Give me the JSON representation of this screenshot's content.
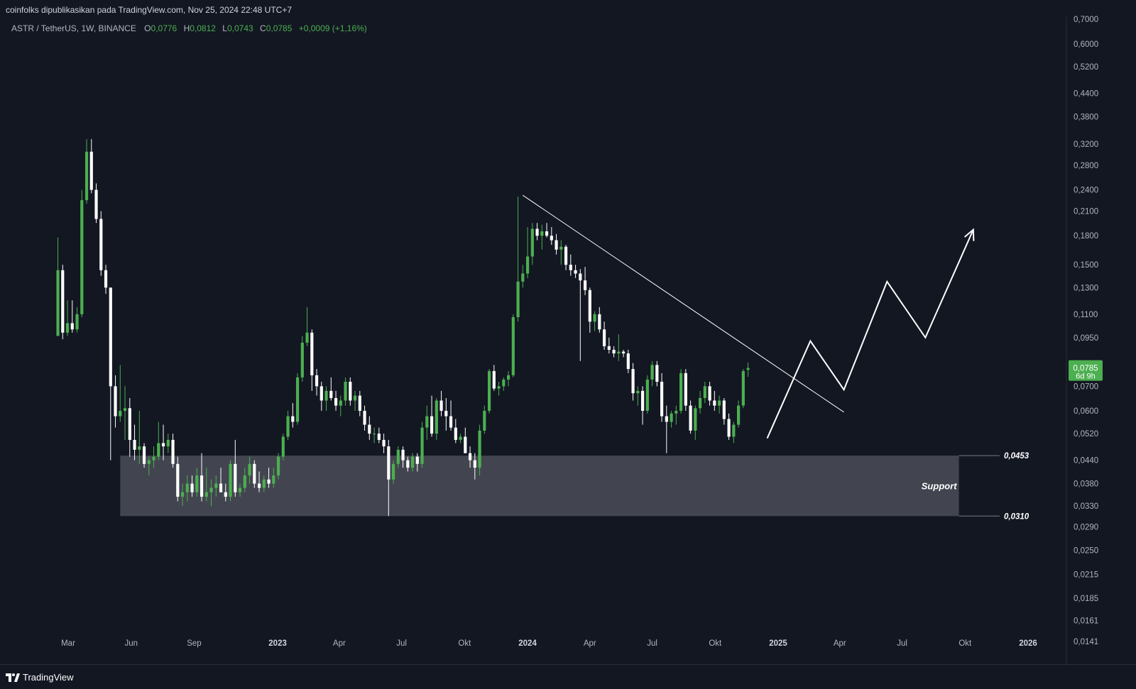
{
  "header": {
    "publisher_line": "coinfolks dipublikasikan pada TradingView.com, Nov 25, 2024 22:48 UTC+7"
  },
  "legend": {
    "symbol": "ASTR / TetherUS, 1W, BINANCE",
    "o_label": "O",
    "o_value": "0,0776",
    "h_label": "H",
    "h_value": "0,0812",
    "l_label": "L",
    "l_value": "0,0743",
    "c_label": "C",
    "c_value": "0,0785",
    "change": "+0,0009 (+1,16%)"
  },
  "footer": {
    "brand": "TradingView"
  },
  "colors": {
    "background": "#131722",
    "up": "#4caf50",
    "down": "#ffffff",
    "support_zone": "#454852",
    "price_tag": "#4caf50",
    "text": "#b2b5be"
  },
  "chart_data": {
    "type": "candlestick",
    "symbol": "ASTR / TetherUS",
    "interval": "1W",
    "exchange": "BINANCE",
    "y_scale": "log",
    "ylim": [
      0.0135,
      0.71
    ],
    "y_ticks": [
      "0,7000",
      "0,6000",
      "0,5200",
      "0,4400",
      "0,3800",
      "0,3200",
      "0,2800",
      "0,2400",
      "0,2100",
      "0,1800",
      "0,1500",
      "0,1300",
      "0,1100",
      "0,0950",
      "0,0700",
      "0,0600",
      "0,0520",
      "0,0440",
      "0,0380",
      "0,0330",
      "0,0290",
      "0,0250",
      "0,0215",
      "0,0185",
      "0,0161",
      "0,0141"
    ],
    "x_ticks": [
      {
        "label": "Mar",
        "date": "2022-03-01",
        "bold": false
      },
      {
        "label": "Jun",
        "date": "2022-06-01",
        "bold": false
      },
      {
        "label": "Sep",
        "date": "2022-09-01",
        "bold": false
      },
      {
        "label": "2023",
        "date": "2023-01-01",
        "bold": true
      },
      {
        "label": "Apr",
        "date": "2023-04-01",
        "bold": false
      },
      {
        "label": "Jul",
        "date": "2023-07-01",
        "bold": false
      },
      {
        "label": "Okt",
        "date": "2023-10-01",
        "bold": false
      },
      {
        "label": "2024",
        "date": "2024-01-01",
        "bold": true
      },
      {
        "label": "Apr",
        "date": "2024-04-01",
        "bold": false
      },
      {
        "label": "Jul",
        "date": "2024-07-01",
        "bold": false
      },
      {
        "label": "Okt",
        "date": "2024-10-01",
        "bold": false
      },
      {
        "label": "2025",
        "date": "2025-01-01",
        "bold": true
      },
      {
        "label": "Apr",
        "date": "2025-04-01",
        "bold": false
      },
      {
        "label": "Jul",
        "date": "2025-07-01",
        "bold": false
      },
      {
        "label": "Okt",
        "date": "2025-10-01",
        "bold": false
      },
      {
        "label": "2026",
        "date": "2026-01-01",
        "bold": true
      }
    ],
    "first_candle_date": "2022-02-14",
    "candles": [
      [
        0.096,
        0.178,
        0.096,
        0.145
      ],
      [
        0.145,
        0.15,
        0.094,
        0.098
      ],
      [
        0.098,
        0.12,
        0.096,
        0.104
      ],
      [
        0.104,
        0.12,
        0.098,
        0.1
      ],
      [
        0.1,
        0.115,
        0.098,
        0.11
      ],
      [
        0.11,
        0.24,
        0.108,
        0.225
      ],
      [
        0.225,
        0.33,
        0.22,
        0.305
      ],
      [
        0.305,
        0.33,
        0.235,
        0.24
      ],
      [
        0.24,
        0.25,
        0.195,
        0.2
      ],
      [
        0.2,
        0.21,
        0.14,
        0.145
      ],
      [
        0.145,
        0.15,
        0.125,
        0.13
      ],
      [
        0.13,
        0.13,
        0.044,
        0.07
      ],
      [
        0.07,
        0.075,
        0.054,
        0.058
      ],
      [
        0.058,
        0.08,
        0.056,
        0.06
      ],
      [
        0.06,
        0.07,
        0.05,
        0.061
      ],
      [
        0.061,
        0.065,
        0.045,
        0.05
      ],
      [
        0.05,
        0.055,
        0.044,
        0.047
      ],
      [
        0.047,
        0.06,
        0.043,
        0.048
      ],
      [
        0.048,
        0.049,
        0.042,
        0.043
      ],
      [
        0.043,
        0.045,
        0.04,
        0.044
      ],
      [
        0.044,
        0.048,
        0.042,
        0.045
      ],
      [
        0.045,
        0.056,
        0.044,
        0.049
      ],
      [
        0.049,
        0.055,
        0.044,
        0.048
      ],
      [
        0.048,
        0.052,
        0.046,
        0.05
      ],
      [
        0.05,
        0.052,
        0.042,
        0.043
      ],
      [
        0.043,
        0.045,
        0.034,
        0.035
      ],
      [
        0.035,
        0.038,
        0.033,
        0.036
      ],
      [
        0.036,
        0.04,
        0.034,
        0.038
      ],
      [
        0.038,
        0.04,
        0.035,
        0.036
      ],
      [
        0.036,
        0.042,
        0.035,
        0.04
      ],
      [
        0.04,
        0.046,
        0.034,
        0.035
      ],
      [
        0.035,
        0.042,
        0.034,
        0.036
      ],
      [
        0.036,
        0.039,
        0.033,
        0.037
      ],
      [
        0.037,
        0.04,
        0.035,
        0.038
      ],
      [
        0.038,
        0.042,
        0.036,
        0.036
      ],
      [
        0.036,
        0.038,
        0.034,
        0.035
      ],
      [
        0.035,
        0.044,
        0.034,
        0.043
      ],
      [
        0.043,
        0.05,
        0.035,
        0.036
      ],
      [
        0.036,
        0.038,
        0.035,
        0.037
      ],
      [
        0.037,
        0.042,
        0.036,
        0.04
      ],
      [
        0.04,
        0.045,
        0.038,
        0.043
      ],
      [
        0.043,
        0.044,
        0.037,
        0.038
      ],
      [
        0.038,
        0.041,
        0.036,
        0.037
      ],
      [
        0.037,
        0.04,
        0.036,
        0.039
      ],
      [
        0.039,
        0.042,
        0.037,
        0.038
      ],
      [
        0.038,
        0.042,
        0.037,
        0.04
      ],
      [
        0.04,
        0.046,
        0.039,
        0.045
      ],
      [
        0.045,
        0.052,
        0.044,
        0.051
      ],
      [
        0.051,
        0.06,
        0.05,
        0.058
      ],
      [
        0.058,
        0.063,
        0.054,
        0.056
      ],
      [
        0.056,
        0.076,
        0.055,
        0.074
      ],
      [
        0.074,
        0.096,
        0.072,
        0.092
      ],
      [
        0.092,
        0.115,
        0.09,
        0.098
      ],
      [
        0.098,
        0.1,
        0.068,
        0.075
      ],
      [
        0.075,
        0.078,
        0.066,
        0.07
      ],
      [
        0.07,
        0.072,
        0.06,
        0.064
      ],
      [
        0.064,
        0.07,
        0.06,
        0.068
      ],
      [
        0.068,
        0.074,
        0.064,
        0.065
      ],
      [
        0.065,
        0.068,
        0.06,
        0.062
      ],
      [
        0.062,
        0.066,
        0.058,
        0.064
      ],
      [
        0.064,
        0.074,
        0.062,
        0.072
      ],
      [
        0.072,
        0.074,
        0.062,
        0.064
      ],
      [
        0.064,
        0.068,
        0.06,
        0.066
      ],
      [
        0.066,
        0.068,
        0.058,
        0.06
      ],
      [
        0.06,
        0.062,
        0.053,
        0.055
      ],
      [
        0.055,
        0.058,
        0.05,
        0.052
      ],
      [
        0.052,
        0.054,
        0.049,
        0.052
      ],
      [
        0.052,
        0.054,
        0.049,
        0.05
      ],
      [
        0.05,
        0.052,
        0.046,
        0.048
      ],
      [
        0.048,
        0.05,
        0.031,
        0.039
      ],
      [
        0.039,
        0.044,
        0.038,
        0.043
      ],
      [
        0.043,
        0.048,
        0.042,
        0.047
      ],
      [
        0.047,
        0.048,
        0.042,
        0.044
      ],
      [
        0.044,
        0.045,
        0.041,
        0.042
      ],
      [
        0.042,
        0.046,
        0.041,
        0.045
      ],
      [
        0.045,
        0.046,
        0.041,
        0.043
      ],
      [
        0.043,
        0.056,
        0.042,
        0.054
      ],
      [
        0.054,
        0.062,
        0.05,
        0.058
      ],
      [
        0.058,
        0.066,
        0.051,
        0.052
      ],
      [
        0.052,
        0.065,
        0.05,
        0.064
      ],
      [
        0.064,
        0.068,
        0.058,
        0.06
      ],
      [
        0.06,
        0.065,
        0.053,
        0.058
      ],
      [
        0.058,
        0.064,
        0.053,
        0.054
      ],
      [
        0.054,
        0.057,
        0.049,
        0.05
      ],
      [
        0.05,
        0.052,
        0.049,
        0.051
      ],
      [
        0.051,
        0.054,
        0.046,
        0.046
      ],
      [
        0.046,
        0.048,
        0.042,
        0.044
      ],
      [
        0.044,
        0.046,
        0.039,
        0.042
      ],
      [
        0.042,
        0.055,
        0.04,
        0.053
      ],
      [
        0.053,
        0.062,
        0.052,
        0.06
      ],
      [
        0.06,
        0.078,
        0.059,
        0.077
      ],
      [
        0.077,
        0.08,
        0.068,
        0.069
      ],
      [
        0.069,
        0.072,
        0.066,
        0.07
      ],
      [
        0.07,
        0.074,
        0.068,
        0.073
      ],
      [
        0.073,
        0.077,
        0.07,
        0.075
      ],
      [
        0.075,
        0.11,
        0.074,
        0.108
      ],
      [
        0.108,
        0.23,
        0.105,
        0.135
      ],
      [
        0.135,
        0.15,
        0.13,
        0.142
      ],
      [
        0.142,
        0.19,
        0.138,
        0.158
      ],
      [
        0.158,
        0.195,
        0.15,
        0.188
      ],
      [
        0.188,
        0.195,
        0.175,
        0.18
      ],
      [
        0.18,
        0.193,
        0.165,
        0.185
      ],
      [
        0.185,
        0.195,
        0.178,
        0.18
      ],
      [
        0.18,
        0.19,
        0.17,
        0.175
      ],
      [
        0.175,
        0.182,
        0.16,
        0.165
      ],
      [
        0.165,
        0.175,
        0.15,
        0.168
      ],
      [
        0.168,
        0.17,
        0.145,
        0.15
      ],
      [
        0.15,
        0.16,
        0.14,
        0.145
      ],
      [
        0.145,
        0.15,
        0.138,
        0.142
      ],
      [
        0.142,
        0.146,
        0.082,
        0.136
      ],
      [
        0.136,
        0.148,
        0.124,
        0.128
      ],
      [
        0.128,
        0.13,
        0.098,
        0.105
      ],
      [
        0.105,
        0.112,
        0.099,
        0.11
      ],
      [
        0.11,
        0.115,
        0.098,
        0.1
      ],
      [
        0.1,
        0.105,
        0.088,
        0.09
      ],
      [
        0.09,
        0.095,
        0.086,
        0.088
      ],
      [
        0.088,
        0.09,
        0.084,
        0.086
      ],
      [
        0.086,
        0.097,
        0.082,
        0.087
      ],
      [
        0.087,
        0.088,
        0.084,
        0.086
      ],
      [
        0.086,
        0.088,
        0.076,
        0.078
      ],
      [
        0.078,
        0.081,
        0.064,
        0.067
      ],
      [
        0.067,
        0.07,
        0.062,
        0.068
      ],
      [
        0.068,
        0.07,
        0.055,
        0.06
      ],
      [
        0.06,
        0.075,
        0.059,
        0.073
      ],
      [
        0.073,
        0.082,
        0.07,
        0.08
      ],
      [
        0.08,
        0.082,
        0.07,
        0.072
      ],
      [
        0.072,
        0.076,
        0.056,
        0.058
      ],
      [
        0.058,
        0.062,
        0.046,
        0.056
      ],
      [
        0.056,
        0.06,
        0.054,
        0.059
      ],
      [
        0.059,
        0.062,
        0.055,
        0.06
      ],
      [
        0.06,
        0.078,
        0.059,
        0.076
      ],
      [
        0.076,
        0.078,
        0.06,
        0.062
      ],
      [
        0.062,
        0.064,
        0.052,
        0.053
      ],
      [
        0.053,
        0.062,
        0.05,
        0.061
      ],
      [
        0.061,
        0.068,
        0.059,
        0.065
      ],
      [
        0.065,
        0.072,
        0.063,
        0.07
      ],
      [
        0.07,
        0.072,
        0.062,
        0.064
      ],
      [
        0.064,
        0.068,
        0.06,
        0.062
      ],
      [
        0.062,
        0.066,
        0.059,
        0.064
      ],
      [
        0.064,
        0.065,
        0.055,
        0.057
      ],
      [
        0.057,
        0.059,
        0.05,
        0.051
      ],
      [
        0.051,
        0.056,
        0.049,
        0.055
      ],
      [
        0.055,
        0.064,
        0.054,
        0.062
      ],
      [
        0.062,
        0.078,
        0.061,
        0.077
      ],
      [
        0.0776,
        0.0812,
        0.0743,
        0.0785
      ]
    ],
    "trendline": {
      "from": {
        "date": "2023-12-25",
        "value": 0.232
      },
      "to": {
        "date": "2025-04-07",
        "value": 0.0595
      }
    },
    "projection_path": [
      {
        "date": "2024-12-16",
        "value": 0.0505
      },
      {
        "date": "2025-02-17",
        "value": 0.093
      },
      {
        "date": "2025-04-07",
        "value": 0.0685
      },
      {
        "date": "2025-06-09",
        "value": 0.135
      },
      {
        "date": "2025-08-04",
        "value": 0.095
      },
      {
        "date": "2025-10-13",
        "value": 0.187
      }
    ],
    "support_zone": {
      "from_date": "2022-05-16",
      "to_date": "2025-09-22",
      "top": 0.0453,
      "bottom": 0.031,
      "label": "Support",
      "top_label": "0,0453",
      "bottom_label": "0,0310"
    },
    "last_price_tag": {
      "value": 0.0785,
      "price_text": "0,0785",
      "countdown": "6d 9h"
    }
  }
}
